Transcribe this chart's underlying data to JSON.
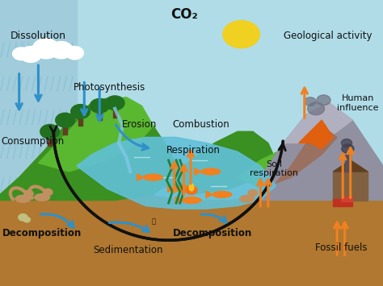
{
  "labels": {
    "co2": "CO₂",
    "dissolution": "Dissolution",
    "photosynthesis": "Photosynthesis",
    "consumption": "Consumption",
    "combustion": "Combustion",
    "erosion": "Erosion",
    "respiration": "Respiration",
    "soil_respiration": "Soil\nrespiration",
    "geological": "Geological activity",
    "human_influence": "Human\ninfluence",
    "fossil_fuels": "Fossil fuels",
    "decomposition_left": "Decomposition",
    "decomposition_right": "Decomposition",
    "sedimentation": "Sedimentation"
  },
  "sky_color": "#b0dce8",
  "rain_sky_color": "#a0ccdc",
  "ground_color": "#b07830",
  "water_color": "#60c0d8",
  "grass_dark": "#3a9020",
  "grass_light": "#5ab830",
  "hill_dark": "#4a8030",
  "mountain_color": "#9090a0",
  "volcano_body": "#9a7060",
  "volcano_lava": "#e06010",
  "circle_color": "#111111",
  "orange_arrow": "#f08020",
  "blue_arrow": "#3090c8",
  "text_color": "#111111",
  "sun_color": "#f0d020",
  "cloud_color": "#ffffff",
  "rain_color": "#80b8d0",
  "fire_orange": "#f07020",
  "fire_yellow": "#f0d020",
  "fish_color": "#f08020",
  "squirrel_color": "#c09060",
  "factory_wall": "#806040",
  "factory_roof": "#604020",
  "smoke_color": "#707080"
}
